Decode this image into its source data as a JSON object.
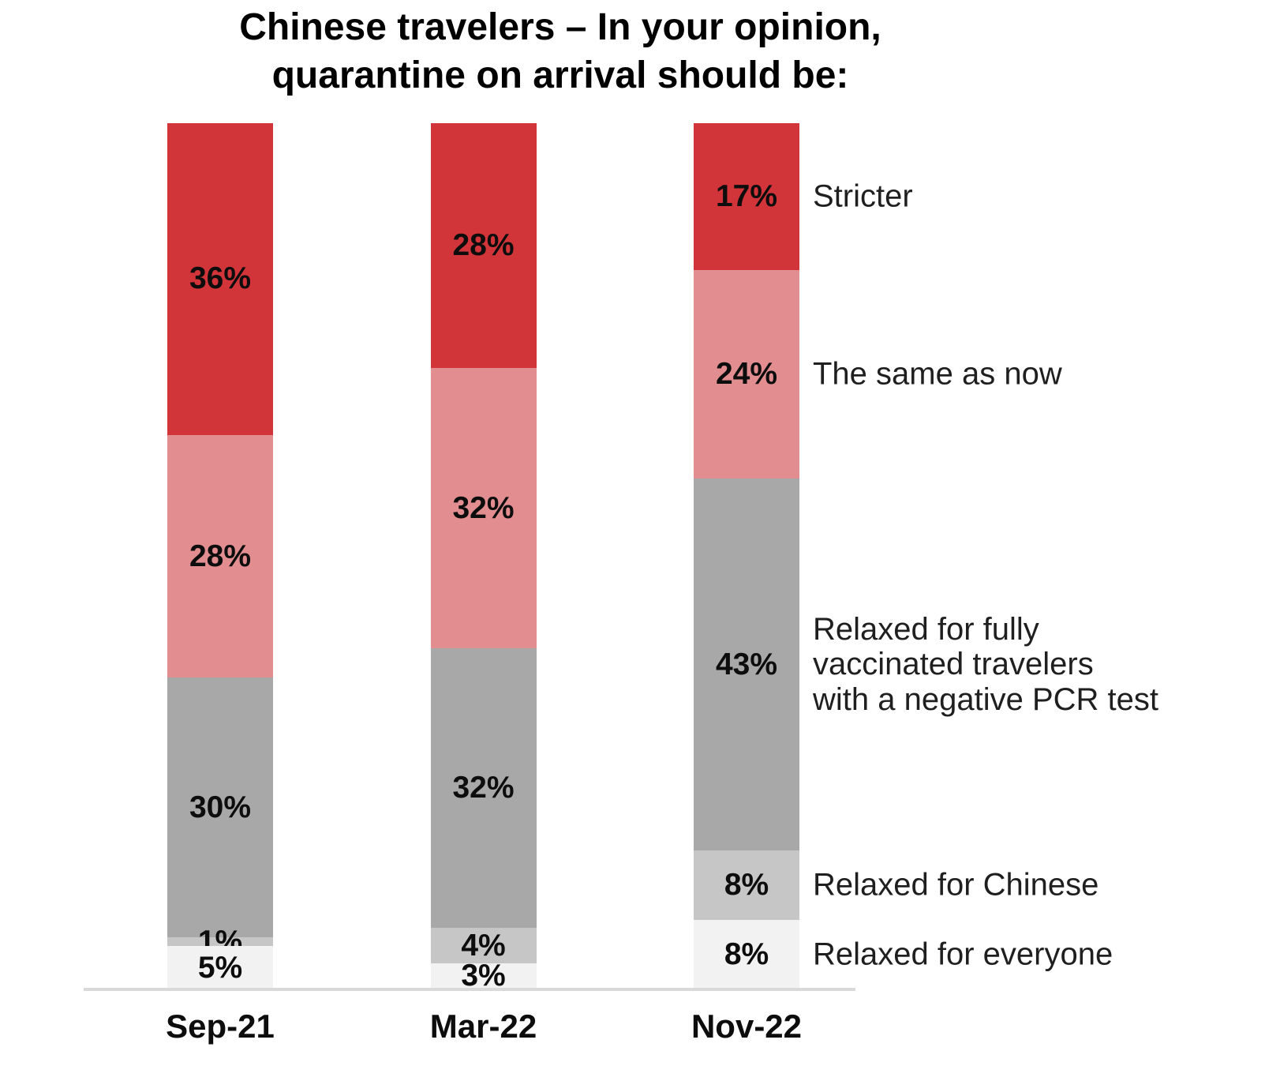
{
  "title": "Chinese travelers – In your opinion,\nquarantine on arrival should be:",
  "chart_data": {
    "type": "bar",
    "stacked": true,
    "orientation": "vertical",
    "title": "Chinese travelers – In your opinion, quarantine on arrival should be:",
    "categories": [
      "Sep-21",
      "Mar-22",
      "Nov-22"
    ],
    "series": [
      {
        "name": "Stricter",
        "label": "Stricter",
        "color": "#d13539",
        "values": [
          36,
          28,
          17
        ]
      },
      {
        "name": "The same as now",
        "label": "The same as now",
        "color": "#e28e91",
        "values": [
          28,
          32,
          24
        ]
      },
      {
        "name": "Relaxed for fully vaccinated travelers with a negative PCR test",
        "label": "Relaxed for fully\nvaccinated travelers\nwith a negative PCR test",
        "color": "#a8a8a8",
        "values": [
          30,
          32,
          43
        ]
      },
      {
        "name": "Relaxed for Chinese",
        "label": "Relaxed for Chinese",
        "color": "#c6c6c6",
        "values": [
          1,
          4,
          8
        ]
      },
      {
        "name": "Relaxed for everyone",
        "label": "Relaxed for everyone",
        "color": "#f2f2f2",
        "values": [
          5,
          3,
          8
        ]
      }
    ],
    "value_suffix": "%",
    "ylim": [
      0,
      100
    ],
    "grid": false,
    "legend_position": "right",
    "series_order": "top-to-bottom"
  }
}
